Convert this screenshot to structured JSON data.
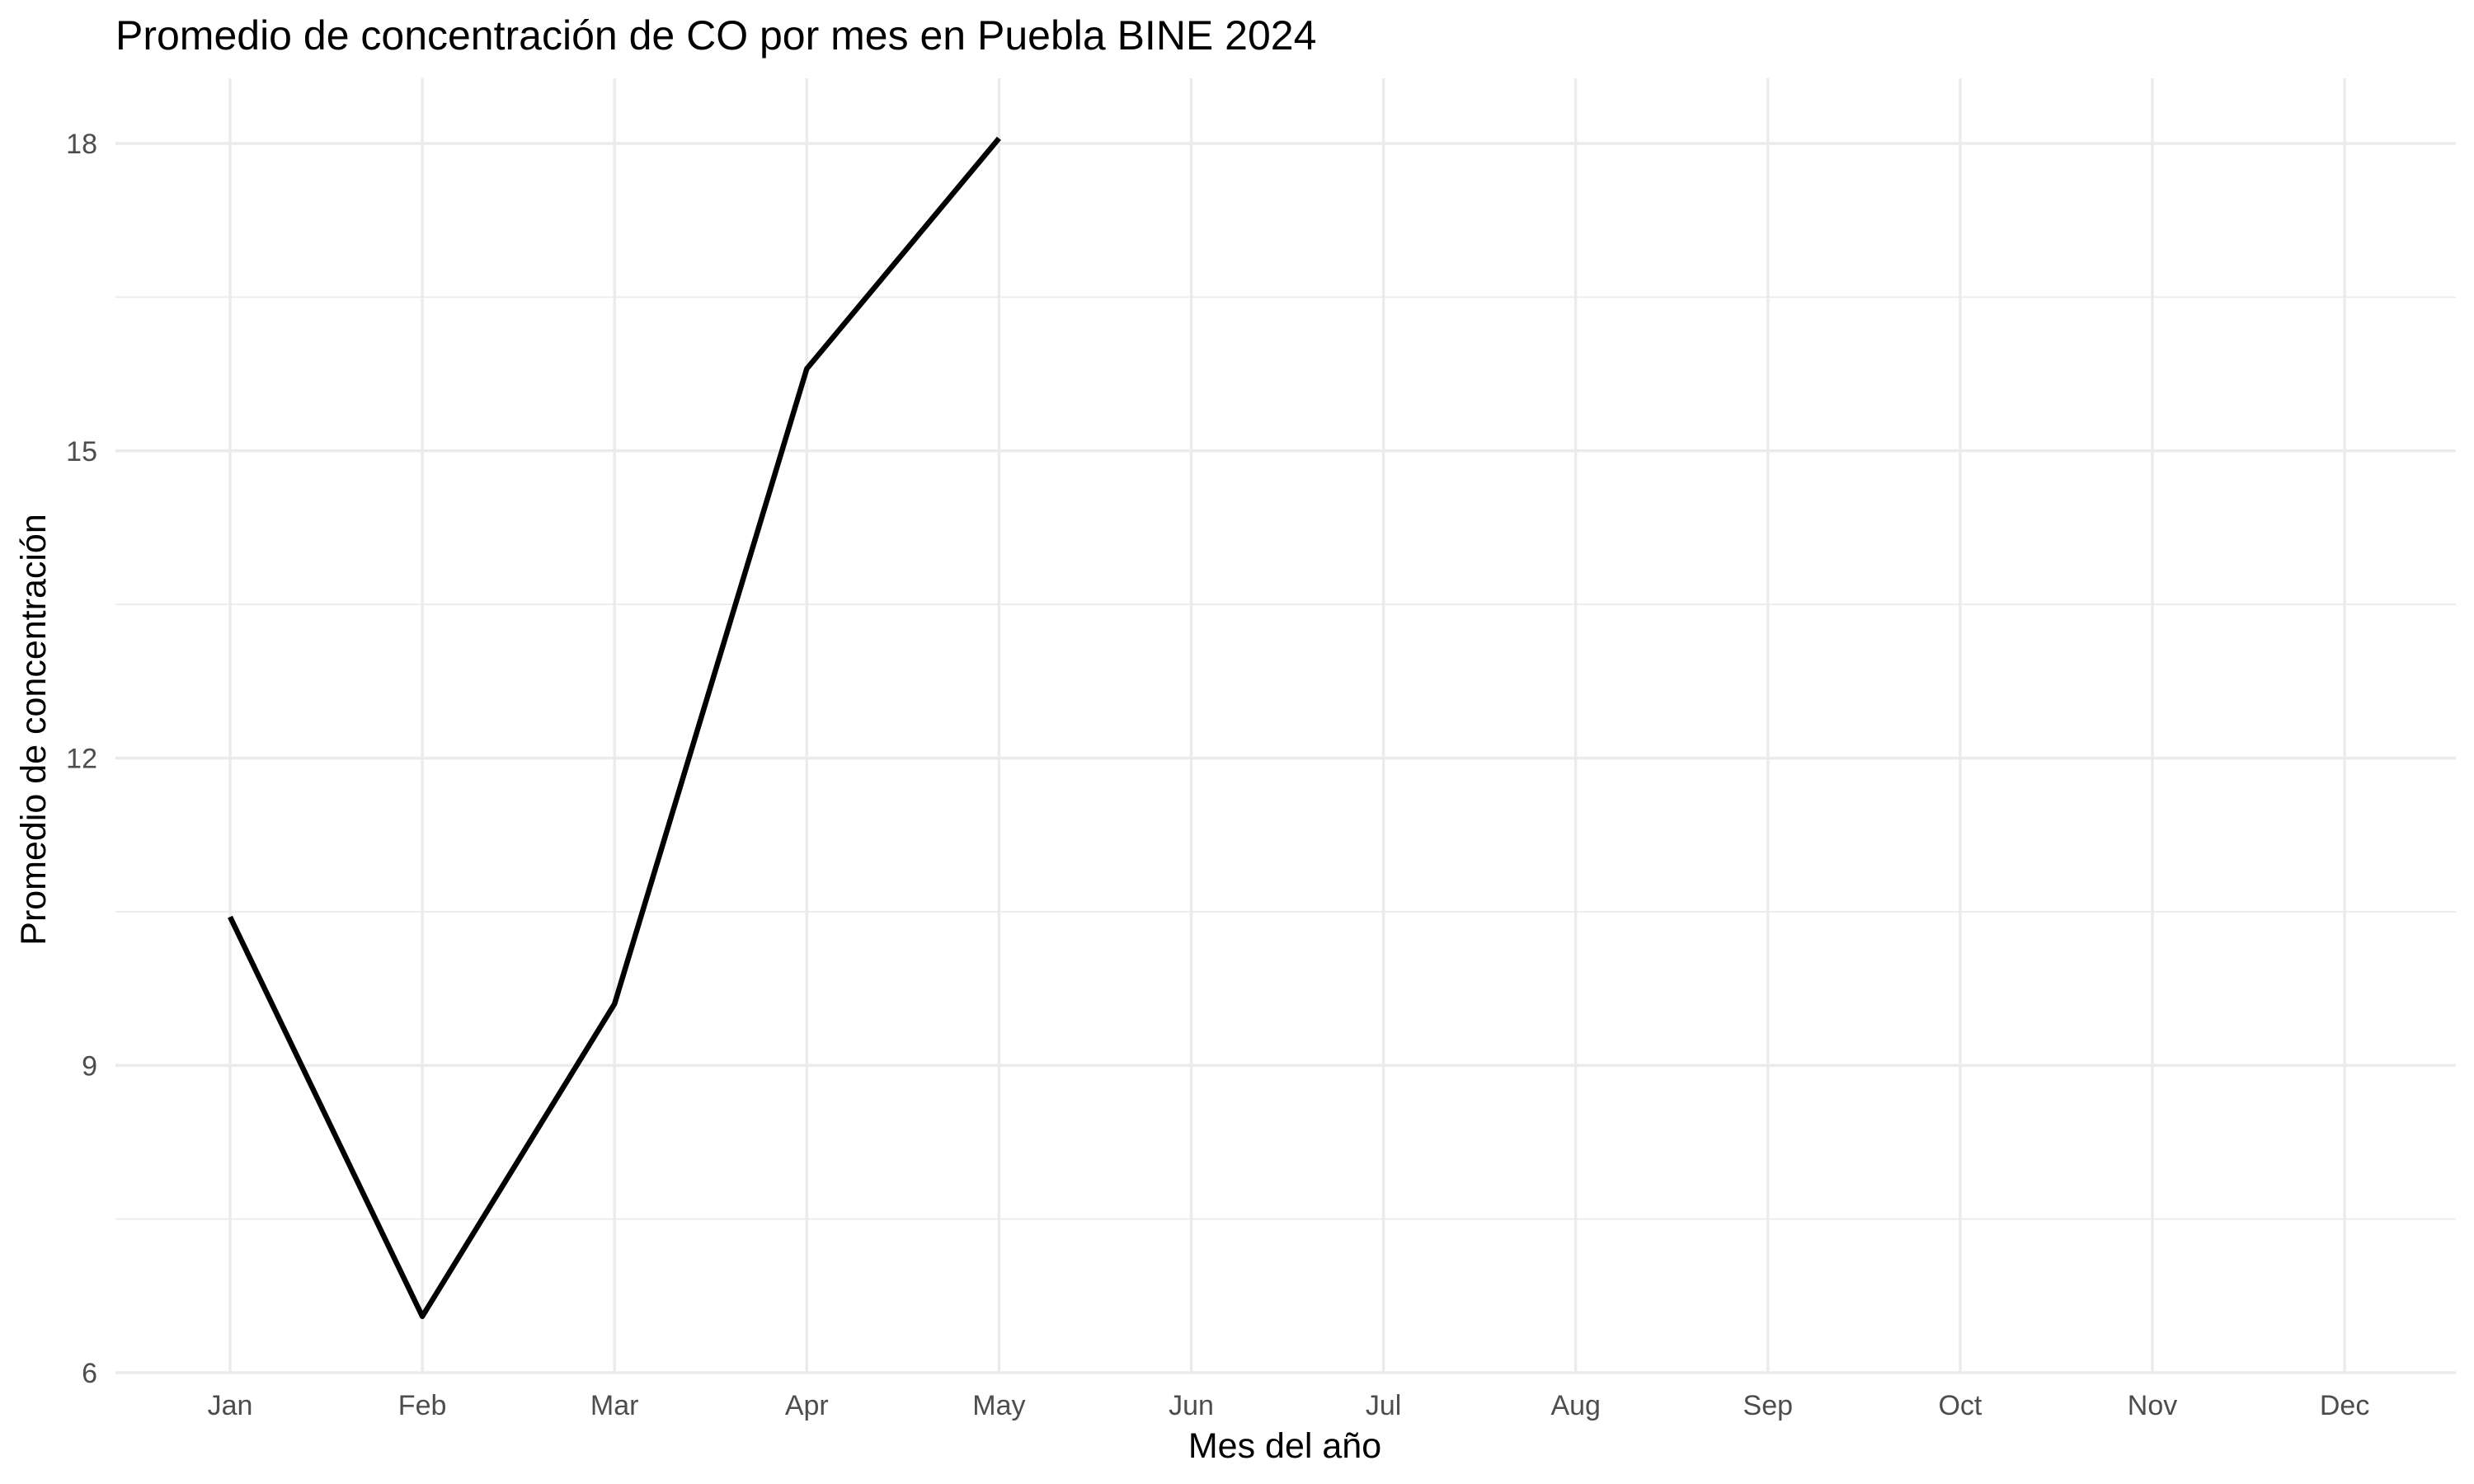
{
  "chart_data": {
    "type": "line",
    "title": "Promedio de concentración de CO por mes en Puebla BINE 2024",
    "xlabel": "Mes del año",
    "ylabel": "Promedio de concentración",
    "categories": [
      "Jan",
      "Feb",
      "Mar",
      "Apr",
      "May",
      "Jun",
      "Jul",
      "Aug",
      "Sep",
      "Oct",
      "Nov",
      "Dec"
    ],
    "y_ticks": [
      6,
      9,
      12,
      15,
      18
    ],
    "y_tick_labels": [
      "6",
      "9",
      "12",
      "15",
      "18"
    ],
    "y_minor_ticks": [
      7.5,
      10.5,
      13.5,
      16.5
    ],
    "ylim": [
      6,
      18
    ],
    "grid": true,
    "legend": "none",
    "series": [
      {
        "values": [
          10.45,
          6.55,
          9.6,
          15.8,
          18.05,
          null,
          null,
          null,
          null,
          null,
          null,
          null
        ],
        "color": "#000000"
      }
    ]
  }
}
